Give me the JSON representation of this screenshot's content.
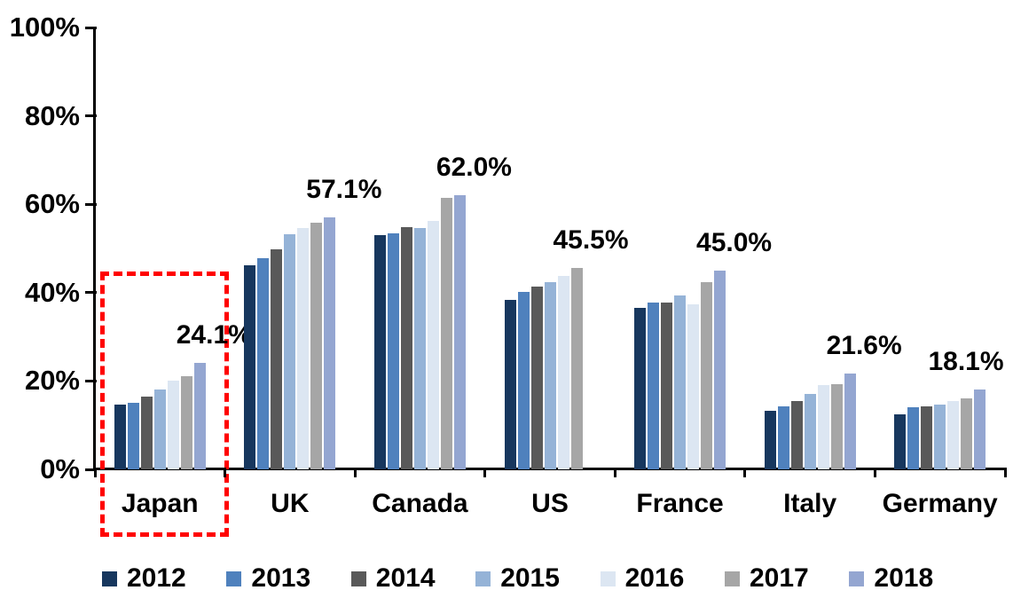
{
  "chart_data": {
    "type": "bar",
    "title": "",
    "xlabel": "",
    "ylabel": "",
    "categories": [
      "Japan",
      "UK",
      "Canada",
      "US",
      "France",
      "Italy",
      "Germany"
    ],
    "series": [
      {
        "name": "2012",
        "color": "#17375E",
        "values": [
          14.7,
          46.2,
          53.0,
          38.4,
          36.5,
          13.3,
          12.5
        ]
      },
      {
        "name": "2013",
        "color": "#4F81BD",
        "values": [
          15.0,
          47.7,
          53.4,
          40.2,
          37.7,
          14.3,
          14.0
        ]
      },
      {
        "name": "2014",
        "color": "#595959",
        "values": [
          16.5,
          49.8,
          54.9,
          41.3,
          37.7,
          15.4,
          14.3
        ]
      },
      {
        "name": "2015",
        "color": "#95B3D7",
        "values": [
          18.0,
          53.2,
          54.6,
          42.3,
          39.3,
          17.0,
          14.7
        ]
      },
      {
        "name": "2016",
        "color": "#DCE6F2",
        "values": [
          20.0,
          54.7,
          56.2,
          43.8,
          37.3,
          19.0,
          15.5
        ]
      },
      {
        "name": "2017",
        "color": "#A6A6A6",
        "values": [
          21.0,
          55.8,
          61.5,
          45.5,
          42.3,
          19.2,
          16.0
        ]
      },
      {
        "name": "2018",
        "color": "#94A6D1",
        "values": [
          24.1,
          57.1,
          62.0,
          null,
          45.0,
          21.6,
          18.1
        ]
      }
    ],
    "data_labels": [
      "24.1%",
      "57.1%",
      "62.0%",
      "45.5%",
      "45.0%",
      "21.6%",
      "18.1%"
    ],
    "y_ticks": [
      "0%",
      "20%",
      "40%",
      "60%",
      "80%",
      "100%"
    ],
    "ylim": [
      0,
      100
    ],
    "grid": false,
    "legend_position": "bottom",
    "highlight": {
      "category": "Japan",
      "style": "red-dashed-box",
      "color": "#FF0000"
    }
  }
}
